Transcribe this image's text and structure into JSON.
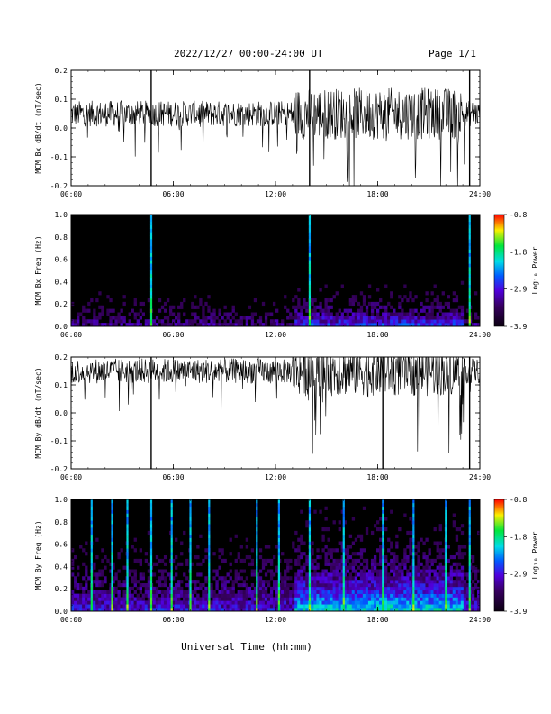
{
  "header": {
    "date_range": "2022/12/27  00:00-24:00 UT",
    "page": "Page 1/1"
  },
  "xlabel": "Universal Time (hh:mm)",
  "chart_data": [
    {
      "type": "line",
      "ylabel": "MCM Bx dB/dt (nT/sec)",
      "xlim": [
        0,
        24
      ],
      "ylim": [
        -0.2,
        0.2
      ],
      "x_ticks": [
        "00:00",
        "06:00",
        "12:00",
        "18:00",
        "24:00"
      ],
      "y_ticks": [
        -0.2,
        -0.1,
        0.0,
        0.1,
        0.2
      ],
      "baseline": 0.05,
      "spikes_hours": [
        4.7,
        14.0,
        23.4
      ]
    },
    {
      "type": "heatmap",
      "ylabel": "MCM Bx Freq (Hz)",
      "xlim": [
        0,
        24
      ],
      "ylim": [
        0,
        1.0
      ],
      "x_ticks": [
        "00:00",
        "06:00",
        "12:00",
        "18:00",
        "24:00"
      ],
      "y_ticks": [
        0.0,
        0.2,
        0.4,
        0.6,
        0.8,
        1.0
      ],
      "colorbar": {
        "label": "Log₁₀ Power",
        "ticks": [
          -0.8,
          -1.8,
          -2.9,
          -3.9
        ]
      },
      "broadband_hours": [
        4.7,
        14.0,
        23.4
      ]
    },
    {
      "type": "line",
      "ylabel": "MCM By dB/dt (nT/sec)",
      "xlim": [
        0,
        24
      ],
      "ylim": [
        -0.2,
        0.2
      ],
      "x_ticks": [
        "00:00",
        "06:00",
        "12:00",
        "18:00",
        "24:00"
      ],
      "y_ticks": [
        -0.2,
        -0.1,
        0.0,
        0.1,
        0.2
      ],
      "baseline": 0.15,
      "spikes_hours": [
        4.7,
        18.3,
        23.4
      ]
    },
    {
      "type": "heatmap",
      "ylabel": "MCM By Freq (Hz)",
      "xlim": [
        0,
        24
      ],
      "ylim": [
        0,
        1.0
      ],
      "x_ticks": [
        "00:00",
        "06:00",
        "12:00",
        "18:00",
        "24:00"
      ],
      "y_ticks": [
        0.0,
        0.2,
        0.4,
        0.6,
        0.8,
        1.0
      ],
      "colorbar": {
        "label": "Log₁₀ Power",
        "ticks": [
          -0.8,
          -1.8,
          -2.9,
          -3.9
        ]
      },
      "broadband_hours": [
        1.2,
        2.4,
        3.3,
        4.7,
        5.9,
        7.0,
        8.1,
        10.9,
        12.2,
        14.0,
        16.0,
        18.3,
        20.1,
        22.0,
        23.4
      ]
    }
  ]
}
